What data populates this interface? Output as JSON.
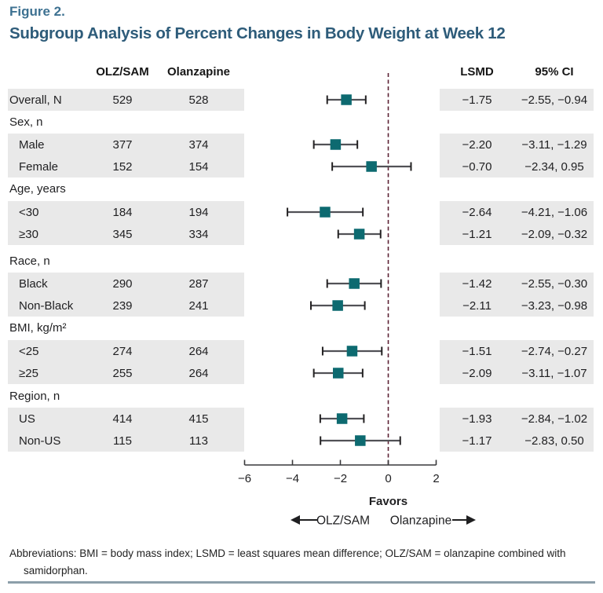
{
  "figure": {
    "label": "Figure 2.",
    "title": "Subgroup Analysis of Percent Changes in Body Weight at Week 12"
  },
  "columns": {
    "olzsam": "OLZ/SAM",
    "olanzapine": "Olanzapine",
    "lsmd": "LSMD",
    "ci": "95% CI"
  },
  "chart_data": {
    "type": "scatter",
    "subtype": "forest-plot",
    "xlabel": "",
    "xlim": [
      -6,
      2
    ],
    "xticks": [
      -6,
      -4,
      -2,
      0,
      2
    ],
    "reference_line_x": 0,
    "favors": {
      "title": "Favors",
      "left_label": "OLZ/SAM",
      "right_label": "Olanzapine"
    },
    "rows": [
      {
        "group": false,
        "indent": 0,
        "striped": true,
        "label": "Overall, N",
        "olzsam": "529",
        "olanzapine": "528",
        "est": -1.75,
        "lo": -2.55,
        "hi": -0.94,
        "lsmd": "−1.75",
        "ci": "−2.55, −0.94"
      },
      {
        "group": true,
        "label": "Sex, n"
      },
      {
        "group": false,
        "indent": 1,
        "striped": true,
        "label": "Male",
        "olzsam": "377",
        "olanzapine": "374",
        "est": -2.2,
        "lo": -3.11,
        "hi": -1.29,
        "lsmd": "−2.20",
        "ci": "−3.11, −1.29"
      },
      {
        "group": false,
        "indent": 1,
        "striped": true,
        "label": "Female",
        "olzsam": "152",
        "olanzapine": "154",
        "est": -0.7,
        "lo": -2.34,
        "hi": 0.95,
        "lsmd": "−0.70",
        "ci": "−2.34, 0.95"
      },
      {
        "group": true,
        "label": "Age, years"
      },
      {
        "group": false,
        "indent": 1,
        "striped": true,
        "label": "<30",
        "olzsam": "184",
        "olanzapine": "194",
        "est": -2.64,
        "lo": -4.21,
        "hi": -1.06,
        "lsmd": "−2.64",
        "ci": "−4.21, −1.06"
      },
      {
        "group": false,
        "indent": 1,
        "striped": true,
        "label": "≥30",
        "olzsam": "345",
        "olanzapine": "334",
        "est": -1.21,
        "lo": -2.09,
        "hi": -0.32,
        "lsmd": "−1.21",
        "ci": "−2.09, −0.32"
      },
      {
        "group": true,
        "label": "Race, n"
      },
      {
        "group": false,
        "indent": 1,
        "striped": true,
        "label": "Black",
        "olzsam": "290",
        "olanzapine": "287",
        "est": -1.42,
        "lo": -2.55,
        "hi": -0.3,
        "lsmd": "−1.42",
        "ci": "−2.55, −0.30"
      },
      {
        "group": false,
        "indent": 1,
        "striped": true,
        "label": "Non-Black",
        "olzsam": "239",
        "olanzapine": "241",
        "est": -2.11,
        "lo": -3.23,
        "hi": -0.98,
        "lsmd": "−2.11",
        "ci": "−3.23, −0.98"
      },
      {
        "group": true,
        "label": "BMI, kg/m²"
      },
      {
        "group": false,
        "indent": 1,
        "striped": true,
        "label": "<25",
        "olzsam": "274",
        "olanzapine": "264",
        "est": -1.51,
        "lo": -2.74,
        "hi": -0.27,
        "lsmd": "−1.51",
        "ci": "−2.74, −0.27"
      },
      {
        "group": false,
        "indent": 1,
        "striped": true,
        "label": "≥25",
        "olzsam": "255",
        "olanzapine": "264",
        "est": -2.09,
        "lo": -3.11,
        "hi": -1.07,
        "lsmd": "−2.09",
        "ci": "−3.11, −1.07"
      },
      {
        "group": true,
        "label": "Region, n"
      },
      {
        "group": false,
        "indent": 1,
        "striped": true,
        "label": "US",
        "olzsam": "414",
        "olanzapine": "415",
        "est": -1.93,
        "lo": -2.84,
        "hi": -1.02,
        "lsmd": "−1.93",
        "ci": "−2.84, −1.02"
      },
      {
        "group": false,
        "indent": 1,
        "striped": true,
        "label": "Non-US",
        "olzsam": "115",
        "olanzapine": "113",
        "est": -1.17,
        "lo": -2.83,
        "hi": 0.5,
        "lsmd": "−1.17",
        "ci": "−2.83, 0.50"
      }
    ]
  },
  "footer": {
    "abbreviations": "Abbreviations: BMI = body mass index; LSMD = least squares mean difference; OLZ/SAM = olanzapine combined with samidorphan."
  },
  "colors": {
    "accent": "#3d7191",
    "subtitle": "#2e5c7a",
    "marker": "#0d6a70",
    "reference_line": "#5b2234",
    "stripe": "#e9e9e9",
    "whisker": "#515156",
    "cap": "#232122",
    "axis": "#39393b",
    "rule": "#8c9faa",
    "text": "#1f1f21"
  }
}
